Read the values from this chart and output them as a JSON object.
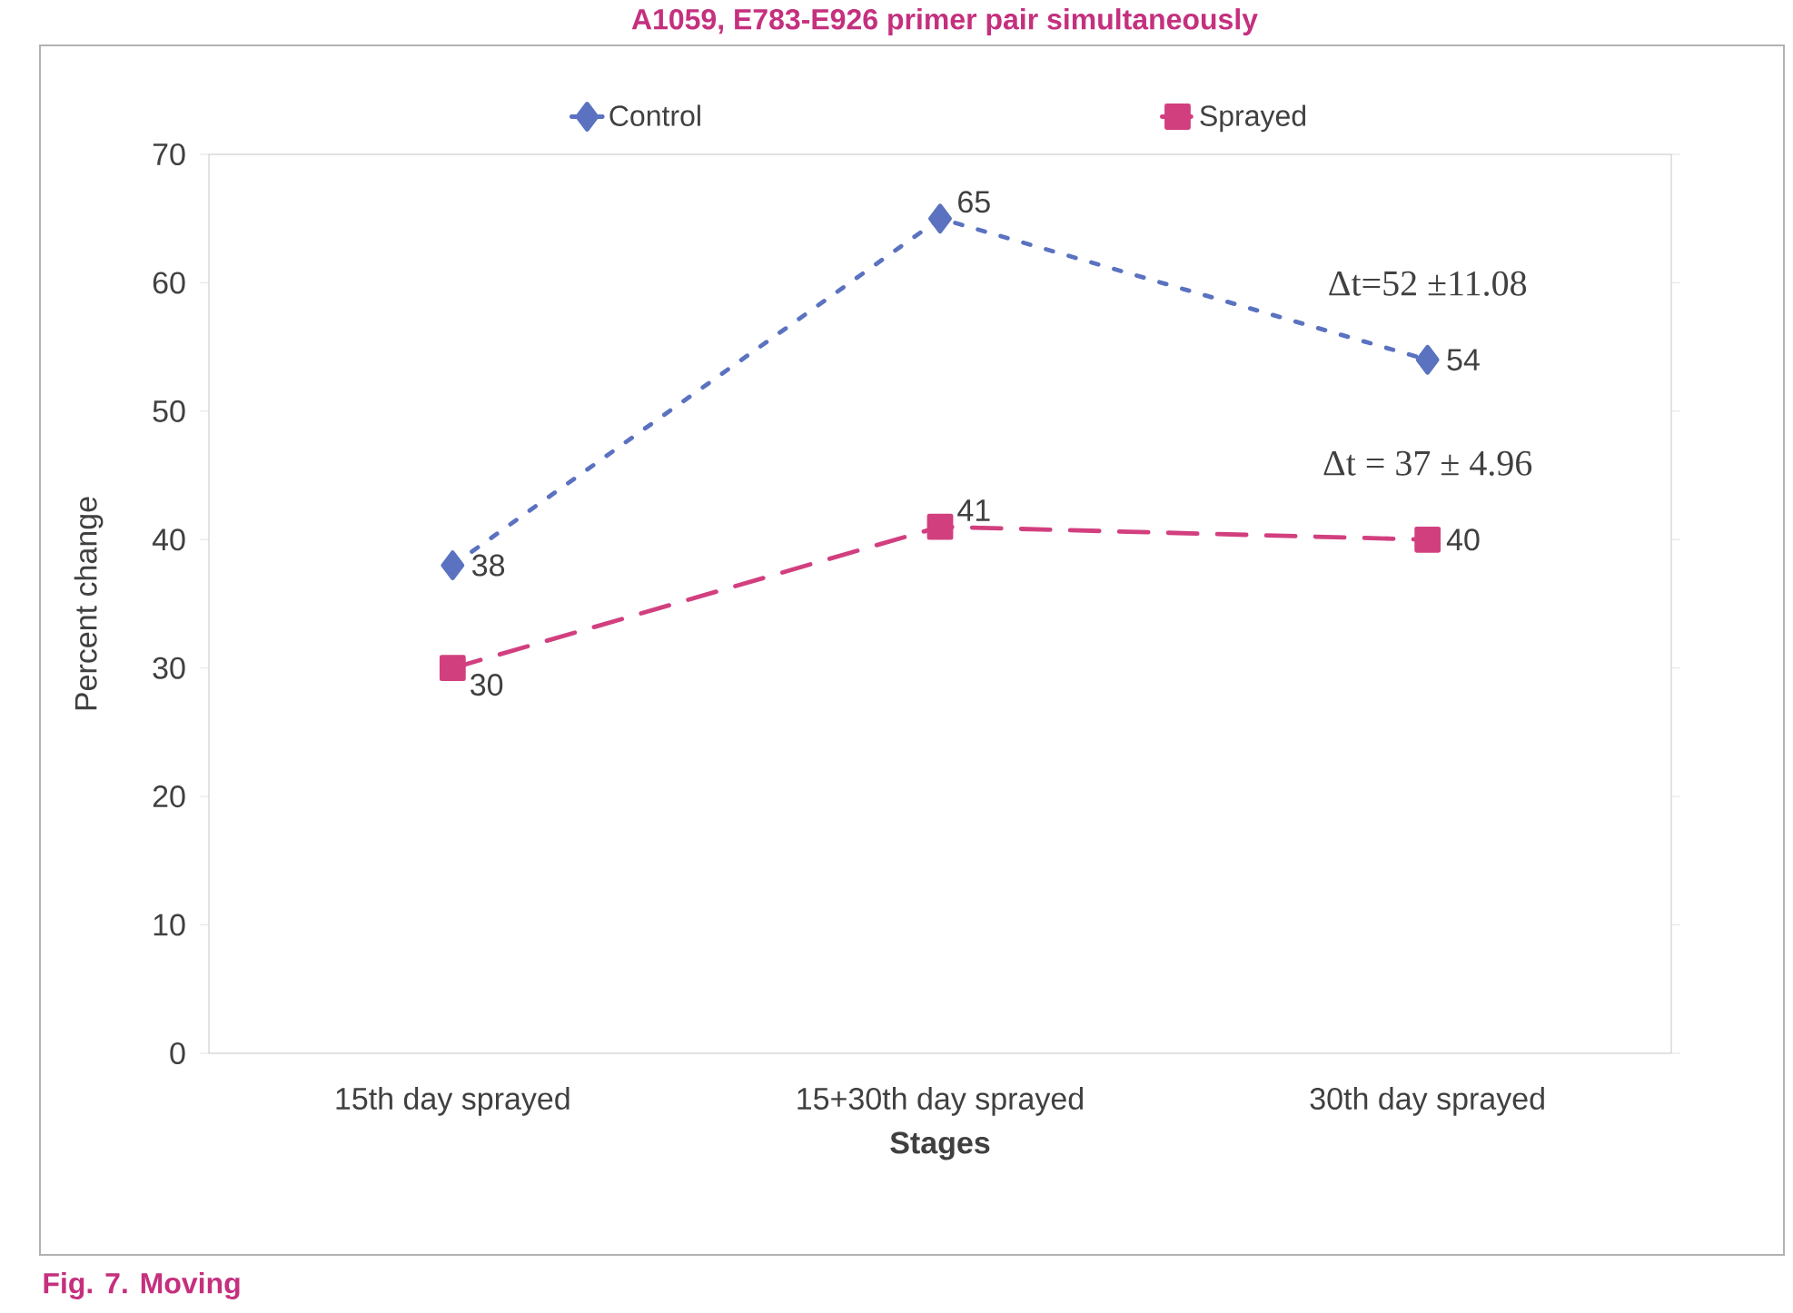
{
  "chart_data": {
    "type": "line",
    "title": "A1059, E783-E926 primer pair simultaneously",
    "xlabel": "Stages",
    "ylabel": "Percent change",
    "categories": [
      "15th day sprayed",
      "15+30th day sprayed",
      "30th day sprayed"
    ],
    "series": [
      {
        "name": "Control",
        "color": "#5a72c0",
        "values": [
          38,
          65,
          54
        ],
        "marker": "diamond",
        "line_style": "dotted"
      },
      {
        "name": "Sprayed",
        "color": "#d23f7f",
        "values": [
          30,
          41,
          40
        ],
        "marker": "square",
        "line_style": "dashed"
      }
    ],
    "ylim": [
      0,
      70
    ],
    "yticks": [
      0,
      10,
      20,
      30,
      40,
      50,
      60,
      70
    ],
    "data_labels": true,
    "legend": "top",
    "annotations": [
      "Δt=52 ±11.08",
      "Δt = 37 ± 4.96",
      "Fig. 7. Moving"
    ]
  }
}
